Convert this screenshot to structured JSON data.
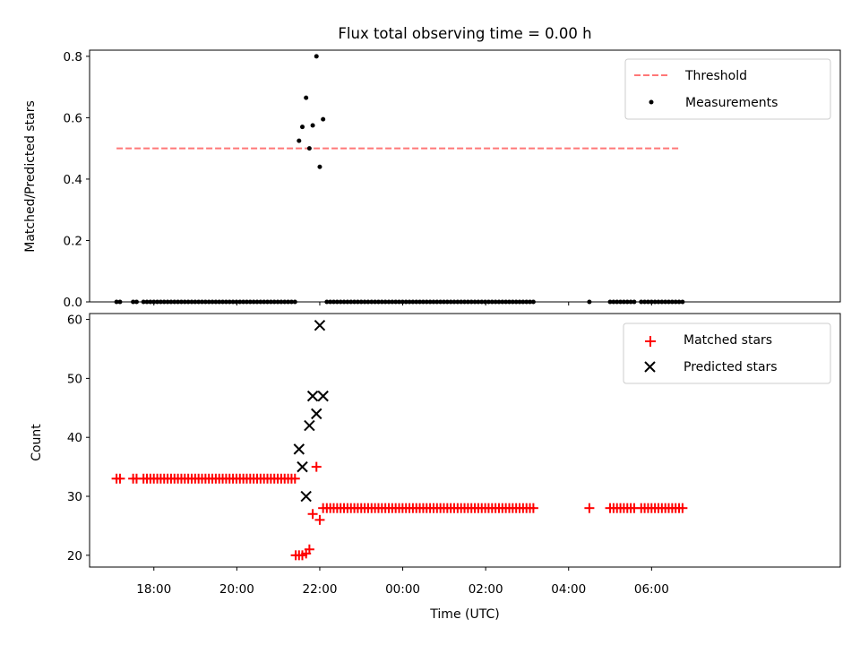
{
  "figure": {
    "title": "Flux total observing time = 0.00 h",
    "xlabel": "Time (UTC)"
  },
  "chart_data": [
    {
      "type": "scatter",
      "panel": "top",
      "ylabel": "Matched/Predicted stars",
      "ylim": [
        0,
        0.82
      ],
      "yticks": [
        "0.0",
        "0.2",
        "0.4",
        "0.6",
        "0.8"
      ],
      "ytick_values": [
        0,
        0.2,
        0.4,
        0.6,
        0.8
      ],
      "x_axis": {
        "unit": "hours since 00:00 UTC",
        "xlim": [
          -7.55,
          10.55
        ],
        "tick_values": [
          -6,
          -4,
          -2,
          0,
          2,
          4,
          6
        ],
        "tick_labels": [
          "18:00",
          "20:00",
          "22:00",
          "00:00",
          "02:00",
          "04:00",
          "06:00"
        ]
      },
      "legend": {
        "position": "top-right"
      },
      "threshold": {
        "name": "Threshold",
        "color": "#ff7777",
        "y": 0.5,
        "x_start": -6.9,
        "x_end": 6.7
      },
      "series": [
        {
          "name": "Measurements",
          "color": "#000000",
          "points": [
            [
              -2.5,
              0.525
            ],
            [
              -2.42,
              0.57
            ],
            [
              -2.33,
              0.665
            ],
            [
              -2.25,
              0.5
            ],
            [
              -2.17,
              0.575
            ],
            [
              -2.08,
              0.8
            ],
            [
              -2.0,
              0.44
            ],
            [
              -1.92,
              0.595
            ]
          ],
          "zero_runs": [
            {
              "start": -6.9,
              "end": -6.8,
              "step": 0.083
            },
            {
              "start": -6.5,
              "end": -6.4,
              "step": 0.083
            },
            {
              "start": -6.25,
              "end": -2.58,
              "step": 0.083
            },
            {
              "start": -1.83,
              "end": 3.17,
              "step": 0.083
            },
            {
              "start": 4.5,
              "end": 4.5,
              "step": 0.083
            },
            {
              "start": 5.0,
              "end": 5.6,
              "step": 0.083
            },
            {
              "start": 5.75,
              "end": 6.75,
              "step": 0.083
            }
          ]
        }
      ]
    },
    {
      "type": "scatter",
      "panel": "bottom",
      "ylabel": "Count",
      "ylim": [
        18,
        61
      ],
      "yticks": [
        "20",
        "30",
        "40",
        "50",
        "60"
      ],
      "ytick_values": [
        20,
        30,
        40,
        50,
        60
      ],
      "x_axis": {
        "unit": "hours since 00:00 UTC",
        "xlim": [
          -7.55,
          10.55
        ],
        "tick_values": [
          -6,
          -4,
          -2,
          0,
          2,
          4,
          6
        ],
        "tick_labels": [
          "18:00",
          "20:00",
          "22:00",
          "00:00",
          "02:00",
          "04:00",
          "06:00"
        ]
      },
      "legend": {
        "position": "top-right"
      },
      "series": [
        {
          "name": "Matched stars",
          "marker": "plus",
          "color": "#ff0000",
          "points": [
            [
              -2.58,
              20
            ],
            [
              -2.5,
              20
            ],
            [
              -2.42,
              20
            ],
            [
              -2.33,
              20.3
            ],
            [
              -2.25,
              21
            ],
            [
              -2.17,
              27
            ],
            [
              -2.08,
              35
            ],
            [
              -2.0,
              26
            ],
            [
              -1.92,
              28
            ]
          ],
          "const_runs": [
            {
              "start": -6.9,
              "end": -6.8,
              "step": 0.083,
              "y": 33
            },
            {
              "start": -6.5,
              "end": -6.4,
              "step": 0.083,
              "y": 33
            },
            {
              "start": -6.25,
              "end": -2.58,
              "step": 0.083,
              "y": 33
            },
            {
              "start": -1.83,
              "end": 3.17,
              "step": 0.083,
              "y": 28
            },
            {
              "start": 4.5,
              "end": 4.5,
              "step": 0.083,
              "y": 28
            },
            {
              "start": 5.0,
              "end": 5.6,
              "step": 0.083,
              "y": 28
            },
            {
              "start": 5.75,
              "end": 6.75,
              "step": 0.083,
              "y": 28
            }
          ]
        },
        {
          "name": "Predicted stars",
          "marker": "x",
          "color": "#000000",
          "points": [
            [
              -2.5,
              38
            ],
            [
              -2.42,
              35
            ],
            [
              -2.33,
              30
            ],
            [
              -2.25,
              42
            ],
            [
              -2.17,
              47
            ],
            [
              -2.08,
              44
            ],
            [
              -2.0,
              59
            ],
            [
              -1.92,
              47
            ]
          ]
        }
      ]
    }
  ]
}
